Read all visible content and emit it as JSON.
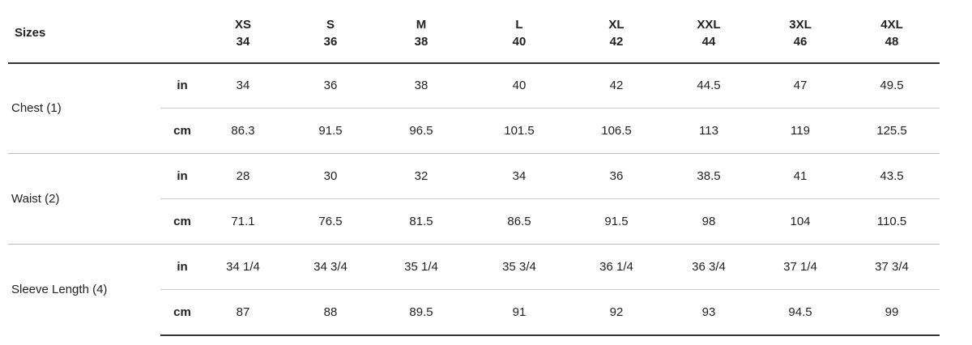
{
  "table": {
    "corner": "Sizes",
    "sizes": [
      {
        "label": "XS",
        "number": 34
      },
      {
        "label": "S",
        "number": 36
      },
      {
        "label": "M",
        "number": 38
      },
      {
        "label": "L",
        "number": 40
      },
      {
        "label": "XL",
        "number": 42
      },
      {
        "label": "XXL",
        "number": 44
      },
      {
        "label": "3XL",
        "number": 46
      },
      {
        "label": "4XL",
        "number": 48
      }
    ],
    "groups": [
      {
        "label": "Chest (1)",
        "rows": [
          {
            "unit": "in",
            "values": [
              34,
              36,
              38,
              40,
              42,
              44.5,
              47,
              49.5
            ]
          },
          {
            "unit": "cm",
            "values": [
              86.3,
              91.5,
              96.5,
              101.5,
              106.5,
              113,
              119,
              125.5
            ]
          }
        ]
      },
      {
        "label": "Waist (2)",
        "rows": [
          {
            "unit": "in",
            "values": [
              28,
              30,
              32,
              34,
              36,
              38.5,
              41,
              43.5
            ]
          },
          {
            "unit": "cm",
            "values": [
              71.1,
              76.5,
              81.5,
              86.5,
              91.5,
              98,
              104,
              110.5
            ]
          }
        ]
      },
      {
        "label": "Sleeve Length (4)",
        "rows": [
          {
            "unit": "in",
            "values": [
              "34 1/4",
              "34 3/4",
              "35 1/4",
              "35 3/4",
              "36 1/4",
              "36 3/4",
              "37 1/4",
              "37 3/4"
            ]
          },
          {
            "unit": "cm",
            "values": [
              87,
              88,
              89.5,
              91,
              92,
              93,
              94.5,
              99
            ]
          }
        ]
      }
    ]
  }
}
